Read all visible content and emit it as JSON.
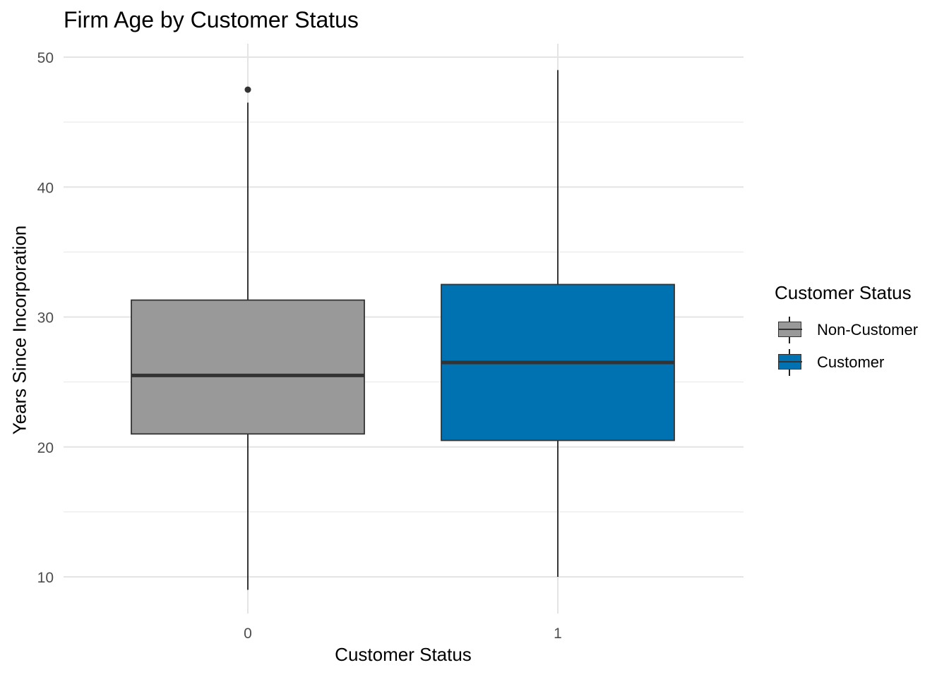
{
  "chart_data": {
    "type": "box",
    "title": "Firm Age by Customer Status",
    "xlabel": "Customer Status",
    "ylabel": "Years Since Incorporation",
    "ylim": [
      5,
      51
    ],
    "yticks": [
      10,
      20,
      30,
      40,
      50
    ],
    "grid": true,
    "legend": {
      "title": "Customer Status",
      "position": "right",
      "entries": [
        {
          "label": "Non-Customer",
          "color": "#999999"
        },
        {
          "label": "Customer",
          "color": "#0072B2"
        }
      ]
    },
    "categories": [
      "0",
      "1"
    ],
    "boxes": [
      {
        "category": "0",
        "name": "Non-Customer",
        "color": "#999999",
        "whisker_low": 9,
        "q1": 21.0,
        "median": 25.5,
        "q3": 31.3,
        "whisker_high": 46.5,
        "outliers": [
          47.5
        ]
      },
      {
        "category": "1",
        "name": "Customer",
        "color": "#0072B2",
        "whisker_low": 10,
        "q1": 20.5,
        "median": 26.5,
        "q3": 32.5,
        "whisker_high": 49,
        "outliers": []
      }
    ]
  }
}
